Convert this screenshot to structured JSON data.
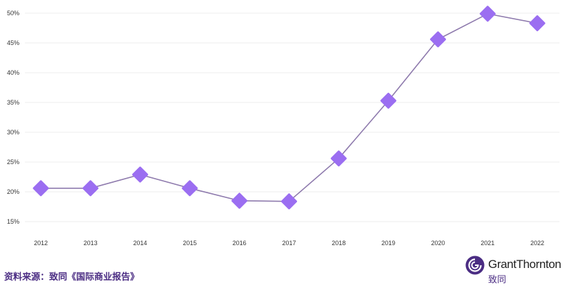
{
  "chart_data": {
    "type": "line",
    "x": [
      "2012",
      "2013",
      "2014",
      "2015",
      "2016",
      "2017",
      "2018",
      "2019",
      "2020",
      "2021",
      "2022"
    ],
    "series": [
      {
        "values": [
          20.6,
          20.6,
          22.9,
          20.6,
          18.5,
          18.4,
          25.6,
          35.3,
          45.6,
          49.9,
          48.3
        ]
      }
    ],
    "y_ticks": [
      15,
      20,
      25,
      30,
      35,
      40,
      45,
      50
    ],
    "y_tick_labels": [
      "15%",
      "20%",
      "25%",
      "30%",
      "35%",
      "40%",
      "45%",
      "50%"
    ],
    "ylim": [
      15,
      50
    ],
    "grid": true,
    "title": "",
    "xlabel": "",
    "ylabel": "",
    "colors": {
      "line": "#8e7aad",
      "marker": "#9b6ef1",
      "grid": "#eeeeee"
    }
  },
  "footer": {
    "source": "资料来源：致同《国际商业报告》"
  },
  "logo": {
    "name": "GrantThornton",
    "subtitle": "致同",
    "icon": "grant-thornton-logo-icon"
  }
}
